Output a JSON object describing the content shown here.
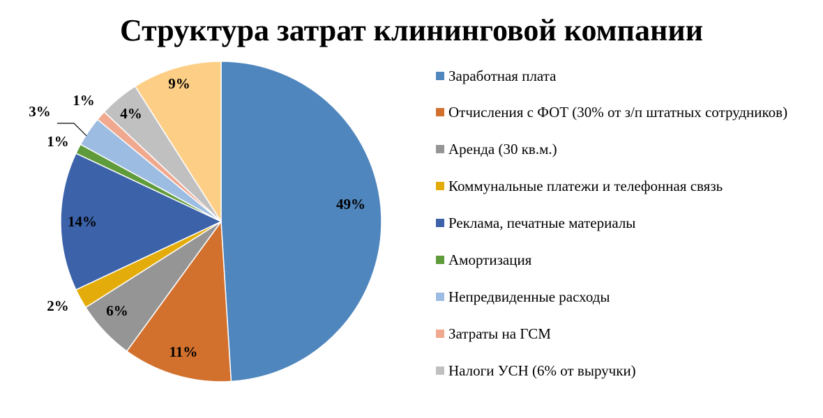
{
  "title": "Структура затрат клининговой компании",
  "chart_data": {
    "type": "pie",
    "title": "Структура затрат клининговой компании",
    "legend_position": "right",
    "start_angle": "12 o'clock, clockwise",
    "slices": [
      {
        "label": "Заработная плата",
        "value": 49,
        "value_label": "49%",
        "color": "#4f86bd"
      },
      {
        "label": "Отчисления с ФОТ (30% от з/п штатных сотрудников)",
        "value": 11,
        "value_label": "11%",
        "color": "#d2712e"
      },
      {
        "label": "Аренда (30 кв.м.)",
        "value": 6,
        "value_label": "6%",
        "color": "#959595"
      },
      {
        "label": "Коммунальные платежи и телефонная связь",
        "value": 2,
        "value_label": "2%",
        "color": "#e3ac0a"
      },
      {
        "label": "Реклама, печатные материалы",
        "value": 14,
        "value_label": "14%",
        "color": "#3c62aa"
      },
      {
        "label": "Амортизация",
        "value": 1,
        "value_label": "1%",
        "color": "#5f9b3b"
      },
      {
        "label": "Непредвиденные расходы",
        "value": 3,
        "value_label": "3%",
        "color": "#9cbce2"
      },
      {
        "label": "Затраты на ГСМ",
        "value": 1,
        "value_label": "1%",
        "color": "#f0a88e"
      },
      {
        "label": "Налоги УСН (6% от выручки)",
        "value": 4,
        "value_label": "4%",
        "color": "#c0c0c0"
      },
      {
        "label": "",
        "value": 9,
        "value_label": "9%",
        "color": "#fdcf86"
      }
    ]
  }
}
